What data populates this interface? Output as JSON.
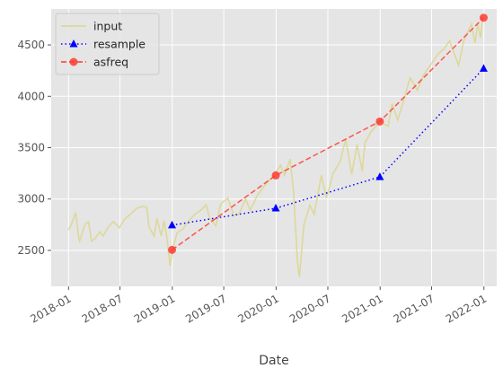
{
  "chart_data": {
    "type": "line",
    "title": "",
    "xlabel": "Date",
    "ylabel": "",
    "grid": true,
    "legend_position": "top-left",
    "xlim": [
      "2017-11-01",
      "2022-02-15"
    ],
    "ylim": [
      2150,
      4850
    ],
    "x_ticks": [
      "2018-01",
      "2018-07",
      "2019-01",
      "2019-07",
      "2020-01",
      "2020-07",
      "2021-01",
      "2021-07",
      "2022-01"
    ],
    "y_ticks": [
      2500,
      3000,
      3500,
      4000,
      4500
    ],
    "series": [
      {
        "name": "input",
        "style": "solid",
        "color": "#dcd68e",
        "marker": "none",
        "points": [
          [
            "2018-01-01",
            2700
          ],
          [
            "2018-01-12",
            2760
          ],
          [
            "2018-01-26",
            2870
          ],
          [
            "2018-02-06",
            2620
          ],
          [
            "2018-02-09",
            2590
          ],
          [
            "2018-02-27",
            2750
          ],
          [
            "2018-03-12",
            2780
          ],
          [
            "2018-03-23",
            2590
          ],
          [
            "2018-04-06",
            2620
          ],
          [
            "2018-04-20",
            2680
          ],
          [
            "2018-05-03",
            2640
          ],
          [
            "2018-05-21",
            2730
          ],
          [
            "2018-06-08",
            2780
          ],
          [
            "2018-06-29",
            2720
          ],
          [
            "2018-07-16",
            2800
          ],
          [
            "2018-08-06",
            2850
          ],
          [
            "2018-08-29",
            2910
          ],
          [
            "2018-09-20",
            2930
          ],
          [
            "2018-10-03",
            2920
          ],
          [
            "2018-10-11",
            2730
          ],
          [
            "2018-10-29",
            2640
          ],
          [
            "2018-11-08",
            2810
          ],
          [
            "2018-11-23",
            2640
          ],
          [
            "2018-12-03",
            2790
          ],
          [
            "2018-12-14",
            2600
          ],
          [
            "2018-12-24",
            2350
          ],
          [
            "2019-01-04",
            2530
          ],
          [
            "2019-01-18",
            2670
          ],
          [
            "2019-02-08",
            2710
          ],
          [
            "2019-02-28",
            2790
          ],
          [
            "2019-03-21",
            2850
          ],
          [
            "2019-04-15",
            2900
          ],
          [
            "2019-04-30",
            2945
          ],
          [
            "2019-05-13",
            2810
          ],
          [
            "2019-06-03",
            2740
          ],
          [
            "2019-06-20",
            2950
          ],
          [
            "2019-07-15",
            3010
          ],
          [
            "2019-08-05",
            2840
          ],
          [
            "2019-08-23",
            2850
          ],
          [
            "2019-09-16",
            3000
          ],
          [
            "2019-10-02",
            2890
          ],
          [
            "2019-10-28",
            3040
          ],
          [
            "2019-11-27",
            3150
          ],
          [
            "2019-12-27",
            3240
          ],
          [
            "2020-01-17",
            3330
          ],
          [
            "2020-01-31",
            3230
          ],
          [
            "2020-02-19",
            3390
          ],
          [
            "2020-03-02",
            3090
          ],
          [
            "2020-03-09",
            2750
          ],
          [
            "2020-03-16",
            2390
          ],
          [
            "2020-03-23",
            2240
          ],
          [
            "2020-04-08",
            2750
          ],
          [
            "2020-04-29",
            2940
          ],
          [
            "2020-05-14",
            2850
          ],
          [
            "2020-06-08",
            3230
          ],
          [
            "2020-06-26",
            3010
          ],
          [
            "2020-07-20",
            3250
          ],
          [
            "2020-08-14",
            3370
          ],
          [
            "2020-09-02",
            3580
          ],
          [
            "2020-09-23",
            3240
          ],
          [
            "2020-10-12",
            3530
          ],
          [
            "2020-10-30",
            3270
          ],
          [
            "2020-11-09",
            3550
          ],
          [
            "2020-12-01",
            3660
          ],
          [
            "2020-12-31",
            3750
          ],
          [
            "2021-01-29",
            3710
          ],
          [
            "2021-02-12",
            3930
          ],
          [
            "2021-03-04",
            3770
          ],
          [
            "2021-03-26",
            3970
          ],
          [
            "2021-04-16",
            4180
          ],
          [
            "2021-05-12",
            4060
          ],
          [
            "2021-06-01",
            4200
          ],
          [
            "2021-07-01",
            4320
          ],
          [
            "2021-07-23",
            4410
          ],
          [
            "2021-08-13",
            4460
          ],
          [
            "2021-09-02",
            4540
          ],
          [
            "2021-10-04",
            4300
          ],
          [
            "2021-10-22",
            4540
          ],
          [
            "2021-11-18",
            4700
          ],
          [
            "2021-12-01",
            4520
          ],
          [
            "2021-12-10",
            4710
          ],
          [
            "2021-12-20",
            4570
          ],
          [
            "2021-12-29",
            4790
          ]
        ]
      },
      {
        "name": "resample",
        "style": "dotted",
        "color": "#0000ff",
        "marker": "triangle",
        "points": [
          [
            "2018-12-31",
            2745
          ],
          [
            "2019-12-31",
            2910
          ],
          [
            "2020-12-31",
            3215
          ],
          [
            "2021-12-31",
            4270
          ]
        ]
      },
      {
        "name": "asfreq",
        "style": "dashed",
        "color": "#ff3b30",
        "marker": "circle",
        "points": [
          [
            "2018-12-31",
            2505
          ],
          [
            "2019-12-31",
            3230
          ],
          [
            "2020-12-31",
            3755
          ],
          [
            "2021-12-31",
            4765
          ]
        ]
      }
    ]
  }
}
